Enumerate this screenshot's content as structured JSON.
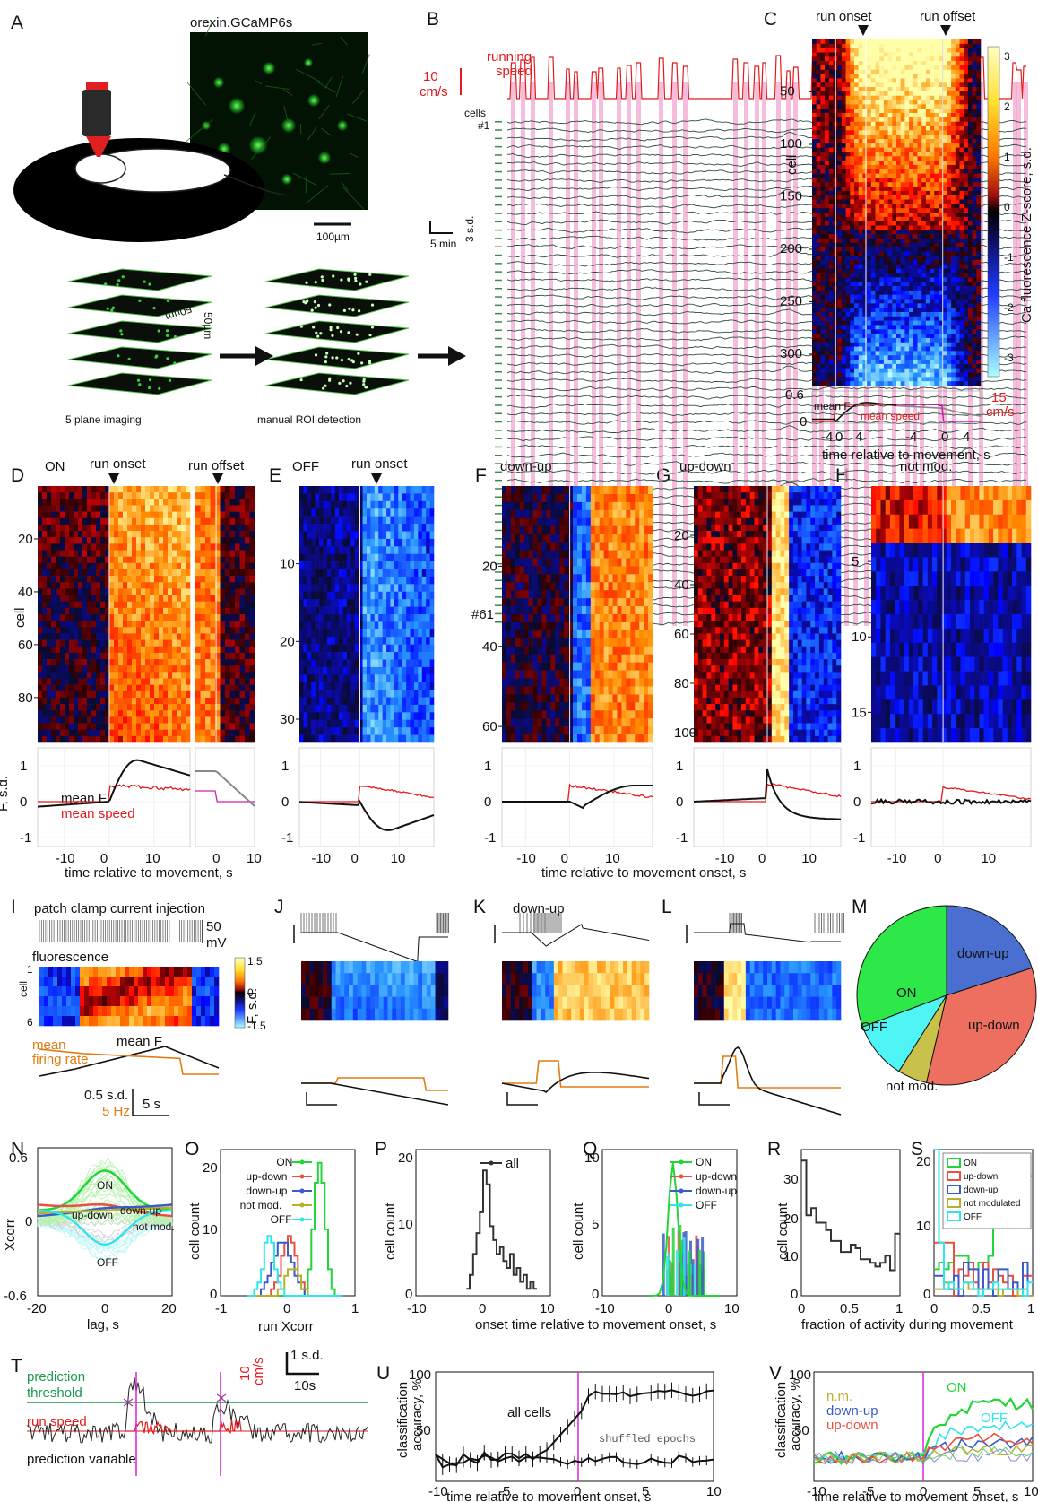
{
  "panel_letters": [
    "A",
    "B",
    "C",
    "D",
    "E",
    "F",
    "G",
    "H",
    "I",
    "J",
    "K",
    "L",
    "M",
    "N",
    "O",
    "P",
    "Q",
    "R",
    "S",
    "T",
    "U",
    "V"
  ],
  "panel_a": {
    "image_title": "orexin.GCaMP6s",
    "scale_bar": "100µm",
    "stack_left_label": "5 plane imaging",
    "stack_right_label": "manual ROI detection",
    "stack_dim_a": "50µm",
    "stack_dim_b": "50µm"
  },
  "panel_b": {
    "speed_label_1": "running",
    "speed_label_2": "speed",
    "speed_scale_1": "10",
    "speed_scale_2": "cm/s",
    "cells_label": "cells",
    "first_cell": "#1",
    "last_cell": "#61",
    "time_scale": "5 min",
    "sd_scale": "3 s.d."
  },
  "panel_c": {
    "run_onset": "run onset",
    "run_offset": "run offset",
    "ylabel": "cell",
    "yticks": [
      "50",
      "100",
      "150",
      "200",
      "250",
      "300"
    ],
    "colorbar_label": "Ca fluorescence Z-score, s.d.",
    "colorbar_ticks": [
      "3",
      "2",
      "1",
      "0",
      "-1",
      "-2",
      "-3"
    ],
    "trace_yticks": [
      "0.6",
      "0"
    ],
    "mean_f": "mean F",
    "mean_speed": "mean speed",
    "speed_scale_1": "15",
    "speed_scale_2": "cm/s",
    "xticks_left": [
      "-4",
      "0",
      "4"
    ],
    "xticks_right": [
      "-4",
      "0",
      "4"
    ],
    "xlabel": "time relative to movement, s"
  },
  "panel_d": {
    "title": "ON",
    "run_onset": "run onset",
    "run_offset": "run offset",
    "ylabel": "cell",
    "yticks": [
      "20",
      "40",
      "60",
      "80"
    ],
    "trace_ylabel": "F, s.d.",
    "trace_yticks": [
      "1",
      "0",
      "-1"
    ],
    "mean_f": "mean F",
    "mean_speed": "mean speed",
    "xticks": [
      "-10",
      "0",
      "10"
    ],
    "xticks_offset": [
      "0",
      "10"
    ],
    "xlabel": "time relative to movement, s"
  },
  "panel_e": {
    "title": "OFF",
    "run_onset": "run onset",
    "yticks": [
      "10",
      "20",
      "30"
    ],
    "trace_yticks": [
      "1",
      "0",
      "-1"
    ],
    "xticks": [
      "-10",
      "0",
      "10"
    ]
  },
  "panel_f": {
    "title": "down-up",
    "yticks": [
      "20",
      "40",
      "60"
    ],
    "trace_yticks": [
      "1",
      "0",
      "-1"
    ],
    "xticks": [
      "-10",
      "0",
      "10"
    ]
  },
  "panel_g": {
    "title": "up-down",
    "yticks": [
      "20",
      "40",
      "60",
      "80",
      "100"
    ],
    "trace_yticks": [
      "1",
      "0",
      "-1"
    ],
    "xticks": [
      "-10",
      "0",
      "10"
    ]
  },
  "panel_h": {
    "title": "not mod.",
    "yticks": [
      "5",
      "10",
      "15"
    ],
    "trace_yticks": [
      "1",
      "0",
      "-1"
    ],
    "xticks": [
      "-10",
      "0",
      "10"
    ]
  },
  "shared_xlabel_fgh": "time relative to movement onset, s",
  "panel_i": {
    "patch_label": "patch clamp current injection",
    "mv_scale_1": "50",
    "mv_scale_2": "mV",
    "fluorescence": "fluorescence",
    "ylabel": "cell",
    "yticks": [
      "1",
      "6"
    ],
    "colorbar_ticks": [
      "1.5",
      "0",
      "-1.5"
    ],
    "colorbar_label": "F, s.d.",
    "mean_firing_1": "mean",
    "mean_firing_2": "firing rate",
    "mean_f": "mean F",
    "sd_scale": "0.5 s.d.",
    "hz_scale": "5 Hz",
    "time_scale": "5 s"
  },
  "panel_k": {
    "title": "down-up"
  },
  "panel_m": {
    "chart_data": {
      "type": "pie",
      "categories": [
        "ON",
        "down-up",
        "up-down",
        "not mod.",
        "OFF"
      ],
      "values": [
        98,
        64,
        107,
        17,
        33
      ],
      "colors": [
        "#2ee84a",
        "#4a6fd0",
        "#ec6f5f",
        "#c8c14a",
        "#4ff4f4"
      ]
    }
  },
  "panel_n": {
    "ylabel": "Xcorr",
    "xlabel": "lag, s",
    "yticks": [
      "0.6",
      "0",
      "-0.6"
    ],
    "xticks": [
      "-20",
      "0",
      "20"
    ],
    "labels": [
      "ON",
      "up-down",
      "down-up",
      "not mod.",
      "OFF"
    ]
  },
  "panel_o": {
    "ylabel": "cell count",
    "xlabel": "run Xcorr",
    "yticks": [
      "20",
      "10",
      "0"
    ],
    "xticks": [
      "-1",
      "0",
      "1"
    ],
    "legend": [
      "ON",
      "up-down",
      "down-up",
      "not mod.",
      "OFF"
    ]
  },
  "panel_p": {
    "ylabel": "cell count",
    "yticks": [
      "20",
      "10",
      "0"
    ],
    "xticks": [
      "-10",
      "0",
      "10"
    ],
    "legend": "all",
    "chart_data": {
      "type": "bar",
      "x": [
        -2.5,
        -2,
        -1.5,
        -1,
        -0.5,
        0,
        0.5,
        1,
        1.5,
        2,
        2.5,
        3,
        3.5,
        4,
        4.5,
        5,
        5.5,
        6,
        6.5,
        7,
        7.5
      ],
      "values": [
        1,
        3,
        6,
        9,
        12,
        18,
        16,
        10,
        8,
        6,
        7,
        5,
        4,
        6,
        3,
        4,
        2,
        3,
        1,
        2,
        1
      ]
    }
  },
  "panel_q": {
    "ylabel": "cell count",
    "yticks": [
      "10",
      "5",
      "0"
    ],
    "xticks": [
      "-10",
      "0",
      "10"
    ],
    "legend": [
      "ON",
      "up-down",
      "down-up",
      "OFF"
    ]
  },
  "shared_xlabel_pq": "onset time relative to movement onset, s",
  "panel_r": {
    "ylabel": "cell count",
    "yticks": [
      "30",
      "20",
      "10",
      "0"
    ],
    "xticks": [
      "0",
      "0.5",
      "1"
    ],
    "chart_data": {
      "type": "bar",
      "x": [
        0,
        0.05,
        0.1,
        0.15,
        0.2,
        0.25,
        0.3,
        0.35,
        0.4,
        0.45,
        0.5,
        0.55,
        0.6,
        0.65,
        0.7,
        0.75,
        0.8,
        0.85,
        0.9,
        0.95
      ],
      "values": [
        37,
        22,
        24,
        20,
        20,
        18,
        15,
        15,
        12,
        12,
        14,
        13,
        10,
        10,
        9,
        8,
        9,
        11,
        7,
        17
      ]
    }
  },
  "panel_s": {
    "yticks": [
      "20",
      "10",
      "0"
    ],
    "xticks": [
      "0",
      "0.5",
      "1"
    ],
    "legend": [
      "ON",
      "up-down",
      "down-up",
      "not modulated",
      "OFF"
    ]
  },
  "shared_xlabel_rs": "fraction of activity during movement",
  "panel_t": {
    "threshold_1": "prediction",
    "threshold_2": "threshold",
    "run_speed": "run speed",
    "prediction": "prediction variable",
    "speed_scale_1": "10",
    "speed_scale_2": "cm/s",
    "sd_scale": "1 s.d.",
    "time_scale": "10s"
  },
  "panel_u": {
    "ylabel_1": "classification",
    "ylabel_2": "accuracy, %",
    "yticks": [
      "100",
      "50"
    ],
    "xticks": [
      "-10",
      "-5",
      "0",
      "5",
      "10"
    ],
    "all_cells": "all cells",
    "shuffled": "shuffled epochs",
    "xlabel": "time relative to movement onset, s"
  },
  "panel_v": {
    "ylabel_1": "classification",
    "ylabel_2": "accuracy, %",
    "yticks": [
      "100",
      "50"
    ],
    "xticks": [
      "-10",
      "-5",
      "0",
      "5",
      "10"
    ],
    "labels": [
      "n.m.",
      "down-up",
      "up-down",
      "ON",
      "OFF"
    ],
    "xlabel": "time relative to movement onset, s"
  },
  "colors": {
    "on": "#22d63a",
    "off": "#2fe6ec",
    "down_up": "#3b5cc8",
    "up_down": "#e8513f",
    "not_mod": "#b8b02c",
    "speed": "#e31a1c",
    "firing": "#e07b12",
    "onset_line": "#e020e0",
    "threshold": "#1a9a4a"
  }
}
